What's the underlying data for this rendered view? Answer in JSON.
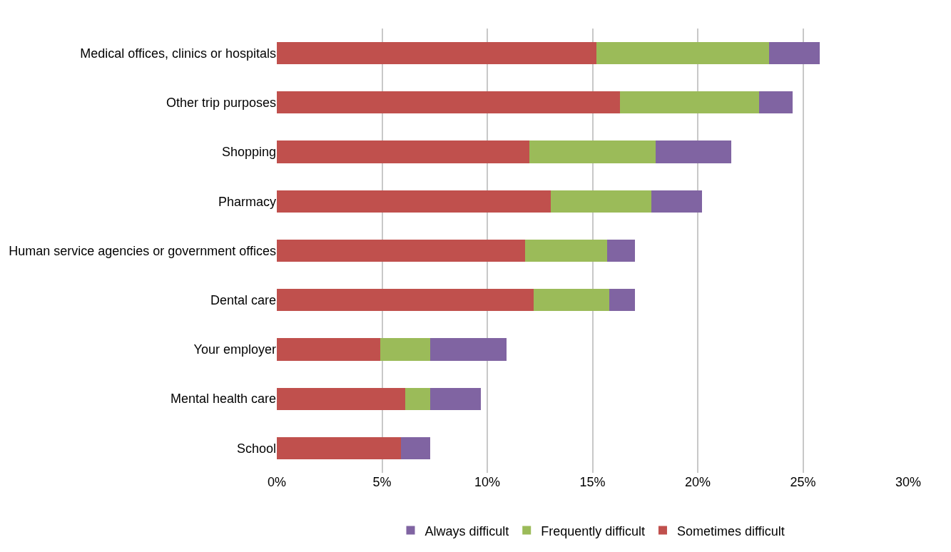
{
  "chart_data": {
    "type": "bar",
    "orientation": "horizontal",
    "stacked": true,
    "categories": [
      "Medical offices, clinics or hospitals",
      "Other trip purposes",
      "Shopping",
      "Pharmacy",
      "Human service agencies or government offices",
      "Dental care",
      "Your employer",
      "Mental health care",
      "School"
    ],
    "series": [
      {
        "name": "Sometimes difficult",
        "color": "#c0504d",
        "values": [
          15.2,
          16.3,
          12.0,
          13.0,
          11.8,
          12.2,
          4.9,
          6.1,
          5.9
        ]
      },
      {
        "name": "Frequently difficult",
        "color": "#9bbb59",
        "values": [
          8.2,
          6.6,
          6.0,
          4.8,
          3.9,
          3.6,
          2.4,
          1.2,
          0
        ]
      },
      {
        "name": "Always difficult",
        "color": "#8064a2",
        "values": [
          2.4,
          1.6,
          3.6,
          2.4,
          1.3,
          1.2,
          3.6,
          2.4,
          1.4
        ]
      }
    ],
    "xlim": [
      0,
      30
    ],
    "xticks": [
      {
        "value": 0,
        "label": "0%"
      },
      {
        "value": 5,
        "label": "5%"
      },
      {
        "value": 10,
        "label": "10%"
      },
      {
        "value": 15,
        "label": "15%"
      },
      {
        "value": 20,
        "label": "20%"
      },
      {
        "value": 25,
        "label": "25%"
      },
      {
        "value": 30,
        "label": "30%"
      }
    ],
    "grid": "x",
    "legend": "bottom"
  }
}
